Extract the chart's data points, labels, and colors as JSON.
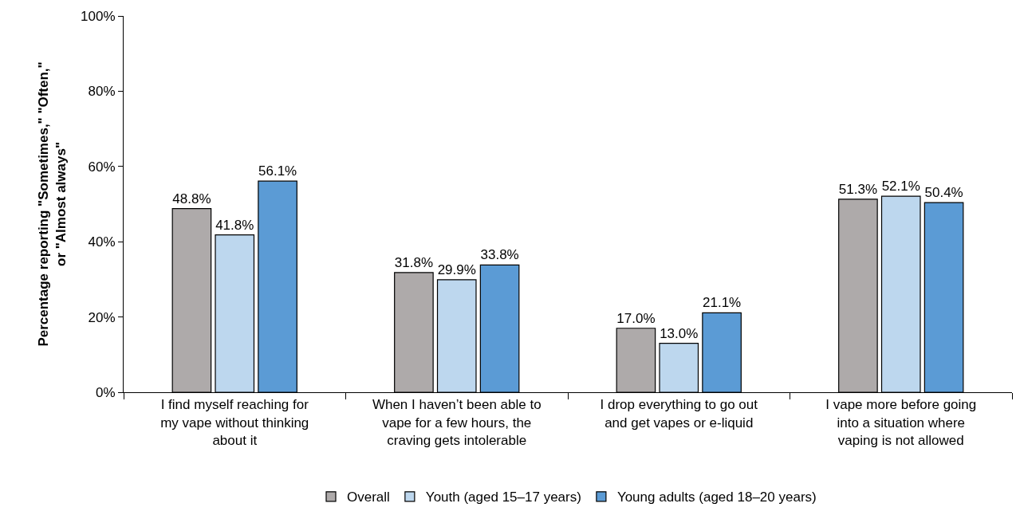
{
  "chart_data": {
    "type": "bar",
    "ylabel": "Percentage reporting \"Sometimes,\" \"Often,\" or \"Almost always\"",
    "categories": [
      "I find myself reaching for my vape without thinking about it",
      "When I haven’t been able to vape for a few hours, the craving gets intolerable",
      "I drop everything to go out and get vapes or e-liquid",
      "I vape more before going into a situation where vaping is not allowed"
    ],
    "series": [
      {
        "name": "Overall",
        "color": "#aeaaaa",
        "values": [
          48.8,
          31.8,
          17.0,
          51.3
        ]
      },
      {
        "name": "Youth (aged 15–17 years)",
        "color": "#bdd7ee",
        "values": [
          41.8,
          29.9,
          13.0,
          52.1
        ]
      },
      {
        "name": "Young adults (aged 18–20 years)",
        "color": "#5b9bd5",
        "values": [
          56.1,
          33.8,
          21.1,
          50.4
        ]
      }
    ],
    "value_labels": [
      [
        "48.8%",
        "31.8%",
        "17.0%",
        "51.3%"
      ],
      [
        "41.8%",
        "29.9%",
        "13.0%",
        "52.1%"
      ],
      [
        "56.1%",
        "33.8%",
        "21.1%",
        "50.4%"
      ]
    ],
    "ylim": [
      0,
      100
    ],
    "yticks": [
      {
        "value": 0,
        "label": "0%"
      },
      {
        "value": 20,
        "label": "20%"
      },
      {
        "value": 40,
        "label": "40%"
      },
      {
        "value": 60,
        "label": "60%"
      },
      {
        "value": 80,
        "label": "80%"
      },
      {
        "value": 100,
        "label": "100%"
      }
    ],
    "grid": false,
    "legend": "bottom"
  }
}
